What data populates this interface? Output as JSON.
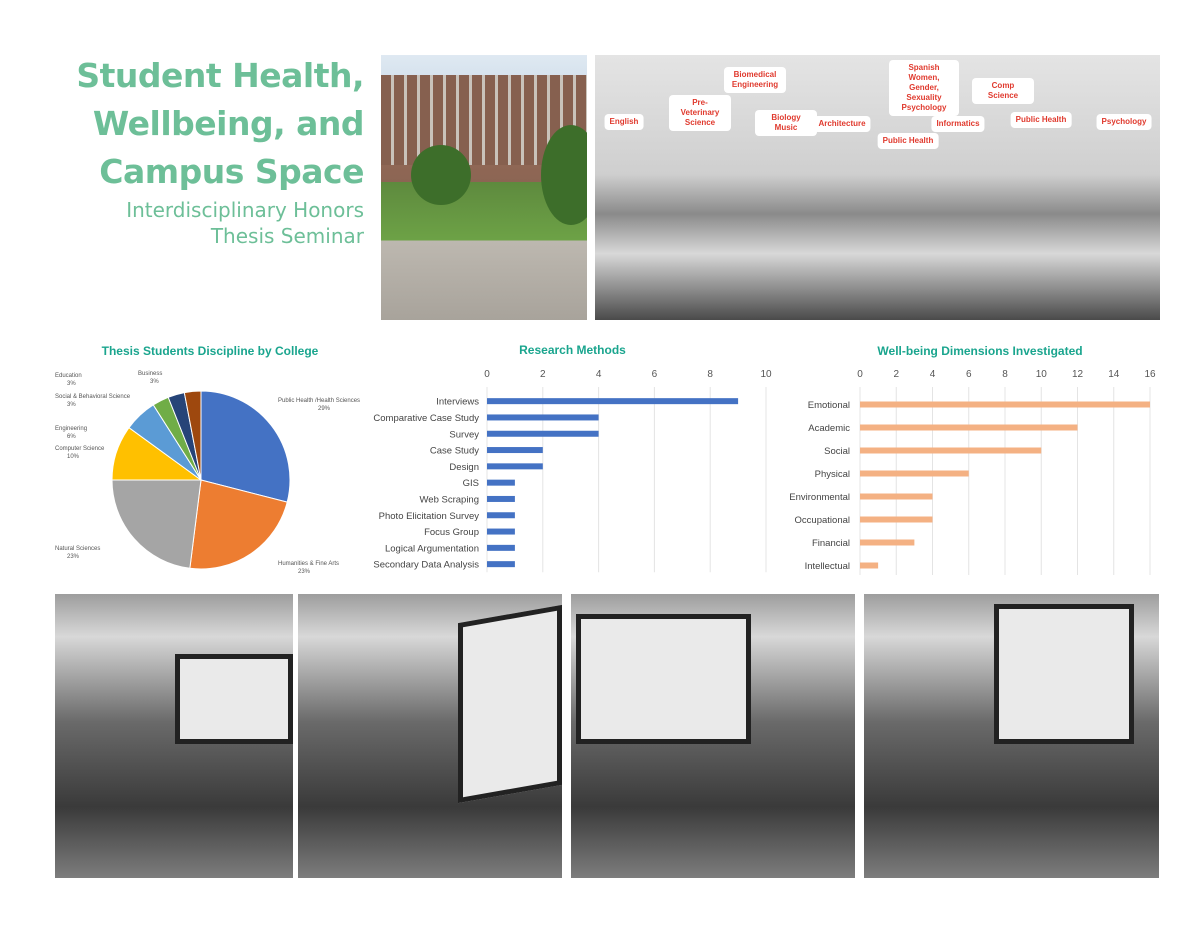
{
  "header": {
    "title": "Student Health, Wellbeing, and Campus Space",
    "subtitle": "Interdisciplinary Honors Thesis Seminar"
  },
  "classroom_tags": [
    "English",
    "Pre-Veterinary Science",
    "Biomedical Engineering",
    "Biology Music",
    "Architecture",
    "Public Health",
    "Spanish Women, Gender, Sexuality Psychology",
    "Informatics",
    "Comp Science",
    "Public Health",
    "Psychology"
  ],
  "colors": {
    "title": "#6dbf98",
    "chart_title": "#1aa58e",
    "methods_bar": "#4472c4",
    "wellbeing_bar": "#f4b183",
    "tag_text": "#e03a2e"
  },
  "chart_data": [
    {
      "type": "pie",
      "title": "Thesis Students Discipline by College",
      "categories": [
        "Public Health /Health Sciences",
        "Humanities & Fine Arts",
        "Natural Sciences",
        "Computer Science",
        "Engineering",
        "Social & Behavioral Science",
        "Education",
        "Business"
      ],
      "values": [
        29,
        23,
        23,
        10,
        6,
        3,
        3,
        3
      ],
      "labels": [
        "29%",
        "23%",
        "23%",
        "10%",
        "6%",
        "3%",
        "3%",
        "3%"
      ],
      "colors": [
        "#4472c4",
        "#ed7d31",
        "#a5a5a5",
        "#ffc000",
        "#5b9bd5",
        "#70ad47",
        "#264478",
        "#9e480e"
      ]
    },
    {
      "type": "bar",
      "orientation": "horizontal",
      "title": "Research Methods",
      "categories": [
        "Interviews",
        "Comparative Case Study",
        "Survey",
        "Case Study",
        "Design",
        "GIS",
        "Web Scraping",
        "Photo Elicitation Survey",
        "Focus Group",
        "Logical Argumentation",
        "Secondary Data Analysis"
      ],
      "values": [
        9,
        4,
        4,
        2,
        2,
        1,
        1,
        1,
        1,
        1,
        1
      ],
      "xlim": [
        0,
        10
      ],
      "ticks": [
        "0",
        "2",
        "4",
        "6",
        "8",
        "10"
      ],
      "grid": true
    },
    {
      "type": "bar",
      "orientation": "horizontal",
      "title": "Well-being Dimensions Investigated",
      "categories": [
        "Emotional",
        "Academic",
        "Social",
        "Physical",
        "Environmental",
        "Occupational",
        "Financial",
        "Intellectual"
      ],
      "values": [
        16,
        12,
        10,
        6,
        4,
        4,
        3,
        1
      ],
      "xlim": [
        0,
        16
      ],
      "ticks": [
        "0",
        "2",
        "4",
        "6",
        "8",
        "10",
        "12",
        "14",
        "16"
      ],
      "grid": true
    }
  ]
}
